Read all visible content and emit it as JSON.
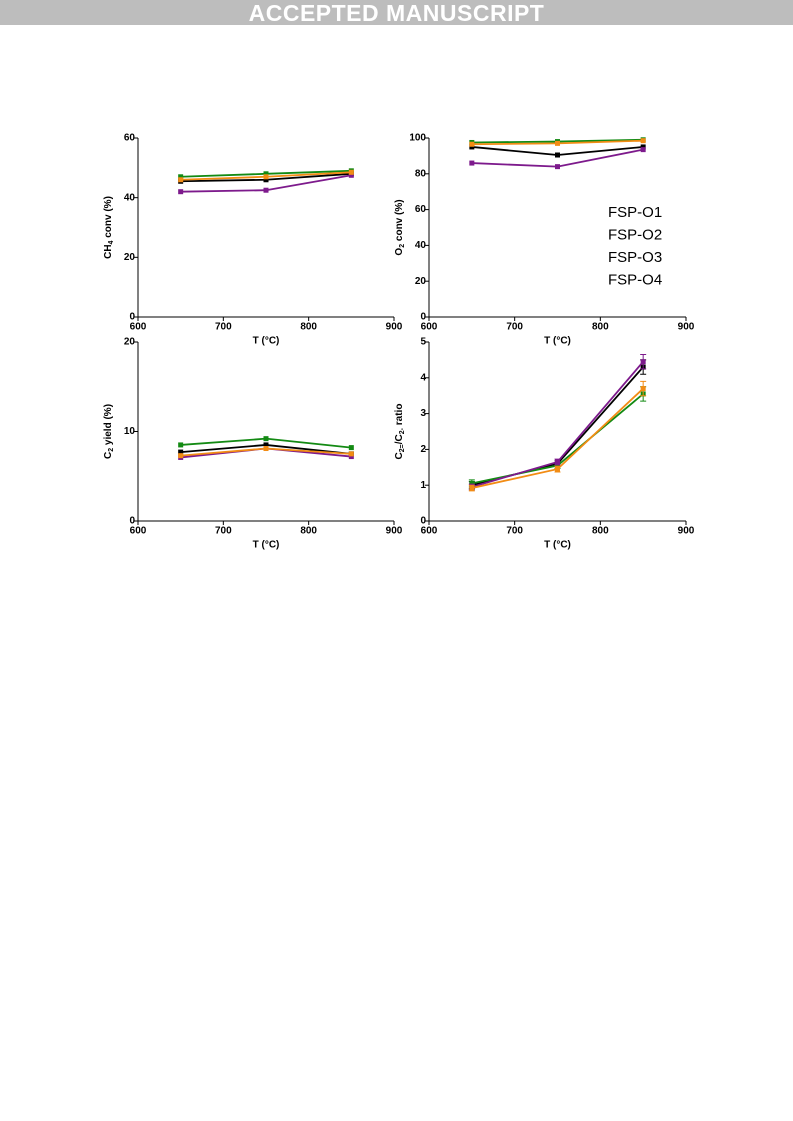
{
  "header": {
    "banner": "ACCEPTED MANUSCRIPT"
  },
  "chart_data": [
    {
      "type": "line",
      "xlabel": "T (°C)",
      "ylabel": [
        "CH",
        "4",
        " conv (%)"
      ],
      "x": [
        650,
        750,
        850
      ],
      "xlim": [
        600,
        900
      ],
      "xticks": [
        600,
        700,
        800,
        900
      ],
      "ylim": [
        0,
        60
      ],
      "yticks": [
        0,
        20,
        40,
        60
      ],
      "series": [
        {
          "color": "#000000",
          "values": [
            45.5,
            46,
            48
          ]
        },
        {
          "color": "#138a13",
          "values": [
            47,
            48,
            49
          ]
        },
        {
          "color": "#7d1a8c",
          "values": [
            42,
            42.5,
            47.5
          ]
        },
        {
          "color": "#f28c14",
          "values": [
            46,
            47,
            48.5
          ]
        }
      ]
    },
    {
      "type": "line",
      "xlabel": "T (°C)",
      "ylabel": [
        "O",
        "2",
        " conv (%)"
      ],
      "x": [
        650,
        750,
        850
      ],
      "xlim": [
        600,
        900
      ],
      "xticks": [
        600,
        700,
        800,
        900
      ],
      "ylim": [
        0,
        100
      ],
      "yticks": [
        0,
        20,
        40,
        60,
        80,
        100
      ],
      "legend": "right",
      "series": [
        {
          "name": "FSP-O1",
          "color": "#000000",
          "values": [
            95,
            90.5,
            95
          ]
        },
        {
          "name": "FSP-O2",
          "color": "#138a13",
          "values": [
            97.5,
            98,
            99
          ]
        },
        {
          "name": "FSP-O3",
          "color": "#7d1a8c",
          "values": [
            86,
            84,
            93.5
          ]
        },
        {
          "name": "FSP-O4",
          "color": "#f28c14",
          "values": [
            96.5,
            97,
            98.5
          ]
        }
      ]
    },
    {
      "type": "line",
      "xlabel": "T (°C)",
      "ylabel": [
        "C",
        "2",
        " yield (%)"
      ],
      "x": [
        650,
        750,
        850
      ],
      "xlim": [
        600,
        900
      ],
      "xticks": [
        600,
        700,
        800,
        900
      ],
      "ylim": [
        0,
        20
      ],
      "yticks": [
        0,
        10,
        20
      ],
      "series": [
        {
          "color": "#000000",
          "values": [
            7.7,
            8.5,
            7.5
          ]
        },
        {
          "color": "#138a13",
          "values": [
            8.5,
            9.2,
            8.2
          ]
        },
        {
          "color": "#7d1a8c",
          "values": [
            7.1,
            8.1,
            7.2
          ]
        },
        {
          "color": "#f28c14",
          "values": [
            7.3,
            8.1,
            7.5
          ]
        }
      ]
    },
    {
      "type": "line",
      "xlabel": "T (°C)",
      "ylabel": [
        "C",
        "2=",
        "/C",
        "2-",
        " ratio"
      ],
      "x": [
        650,
        750,
        850
      ],
      "xlim": [
        600,
        900
      ],
      "xticks": [
        600,
        700,
        800,
        900
      ],
      "ylim": [
        0,
        5
      ],
      "yticks": [
        0,
        1,
        2,
        3,
        4,
        5
      ],
      "series": [
        {
          "color": "#000000",
          "values": [
            1.0,
            1.6,
            4.3
          ],
          "errors": [
            0.1,
            0.08,
            0.2
          ]
        },
        {
          "color": "#138a13",
          "values": [
            1.05,
            1.55,
            3.55
          ],
          "errors": [
            0.1,
            0.08,
            0.2
          ]
        },
        {
          "color": "#7d1a8c",
          "values": [
            0.95,
            1.65,
            4.45
          ],
          "errors": [
            0.08,
            0.08,
            0.2
          ]
        },
        {
          "color": "#f28c14",
          "values": [
            0.92,
            1.45,
            3.7
          ],
          "errors": [
            0.08,
            0.08,
            0.2
          ]
        }
      ]
    }
  ]
}
